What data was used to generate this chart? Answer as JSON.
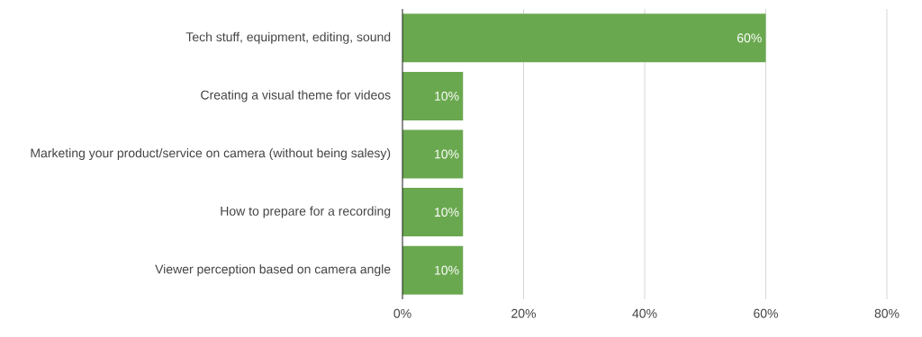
{
  "chart_data": {
    "type": "bar",
    "orientation": "horizontal",
    "categories": [
      "Tech stuff, equipment, editing, sound",
      "Creating a visual theme for videos",
      "Marketing your product/service on camera (without being salesy)",
      "How to prepare for a recording",
      "Viewer perception based on camera angle"
    ],
    "values": [
      60,
      10,
      10,
      10,
      10
    ],
    "value_labels": [
      "60%",
      "10%",
      "10%",
      "10%",
      "10%"
    ],
    "color": "#6aa84f",
    "xlim": [
      0,
      80
    ],
    "xticks": [
      {
        "value": 0,
        "label": "0%"
      },
      {
        "value": 20,
        "label": "20%"
      },
      {
        "value": 40,
        "label": "40%"
      },
      {
        "value": 60,
        "label": "60%"
      },
      {
        "value": 80,
        "label": "80%"
      }
    ],
    "grid": "x"
  }
}
